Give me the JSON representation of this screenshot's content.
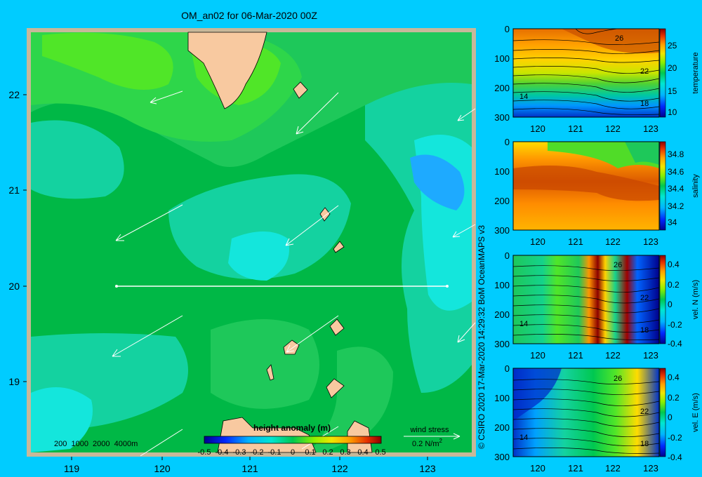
{
  "title": "OM_an02 for 06-Mar-2020 00Z",
  "credit": "© CSIRO 2020  17-Mar-2020 14:29:32 BoM OceanMAPS v3",
  "map": {
    "x_ticks": [
      "119",
      "120",
      "121",
      "122",
      "123"
    ],
    "y_ticks": [
      "22",
      "21",
      "20",
      "19"
    ],
    "depth_legend": "200  1000  2000  4000m",
    "wind_stress_label": "wind stress",
    "wind_stress_scale": "0.2 N/m",
    "wind_stress_exponent": "2",
    "colorbar_title": "height anomaly (m)",
    "colorbar_ticks": [
      "-0.5",
      "-0.4",
      "-0.3",
      "-0.2",
      "-0.1",
      "0",
      "0.1",
      "0.2",
      "0.3",
      "0.4",
      "0.5"
    ]
  },
  "chart_data": [
    {
      "type": "heatmap",
      "title": "OM_an02 for 06-Mar-2020 00Z",
      "variable": "height anomaly (m)",
      "colorbar_range": [
        -0.5,
        0.5
      ],
      "xlim": [
        118.5,
        123.5
      ],
      "ylim": [
        18.25,
        22.7
      ],
      "section_line": {
        "lat": 20.0,
        "lon_start": 119.5,
        "lon_end": 123.2
      }
    },
    {
      "type": "heatmap",
      "variable": "temperature",
      "x_ticks": [
        "120",
        "121",
        "122",
        "123"
      ],
      "y_ticks": [
        "0",
        "100",
        "200",
        "300"
      ],
      "colorbar_ticks": [
        "25",
        "20",
        "15",
        "10"
      ],
      "contour_labels": [
        "26",
        "22",
        "18",
        "14"
      ],
      "xlim": [
        119.5,
        123.2
      ],
      "ylim": [
        300,
        0
      ]
    },
    {
      "type": "heatmap",
      "variable": "salinity",
      "x_ticks": [
        "120",
        "121",
        "122",
        "123"
      ],
      "y_ticks": [
        "0",
        "100",
        "200",
        "300"
      ],
      "colorbar_ticks": [
        "34.8",
        "34.6",
        "34.4",
        "34.2",
        "34"
      ],
      "xlim": [
        119.5,
        123.2
      ],
      "ylim": [
        300,
        0
      ]
    },
    {
      "type": "heatmap",
      "variable": "vel. N (m/s)",
      "x_ticks": [
        "120",
        "121",
        "122",
        "123"
      ],
      "y_ticks": [
        "0",
        "100",
        "200",
        "300"
      ],
      "colorbar_ticks": [
        "0.4",
        "0.2",
        "0",
        "-0.2",
        "-0.4"
      ],
      "contour_labels": [
        "26",
        "22",
        "18",
        "14"
      ],
      "xlim": [
        119.5,
        123.2
      ],
      "ylim": [
        300,
        0
      ]
    },
    {
      "type": "heatmap",
      "variable": "vel. E (m/s)",
      "x_ticks": [
        "120",
        "121",
        "122",
        "123"
      ],
      "y_ticks": [
        "0",
        "100",
        "200",
        "300"
      ],
      "colorbar_ticks": [
        "0.4",
        "0.2",
        "0",
        "-0.2",
        "-0.4"
      ],
      "contour_labels": [
        "26",
        "22",
        "18",
        "14"
      ],
      "xlim": [
        119.5,
        123.2
      ],
      "ylim": [
        300,
        0
      ]
    }
  ],
  "colors": {
    "background": "#00ccff",
    "frame": "#c8b89a",
    "land": "#f8c9a0",
    "map_green_dark": "#00b846",
    "map_green_mid": "#1ec85a",
    "map_green_light": "#50e628",
    "map_teal": "#14d2a0",
    "map_cyan": "#14e6dc",
    "map_blue": "#1eaaff"
  }
}
